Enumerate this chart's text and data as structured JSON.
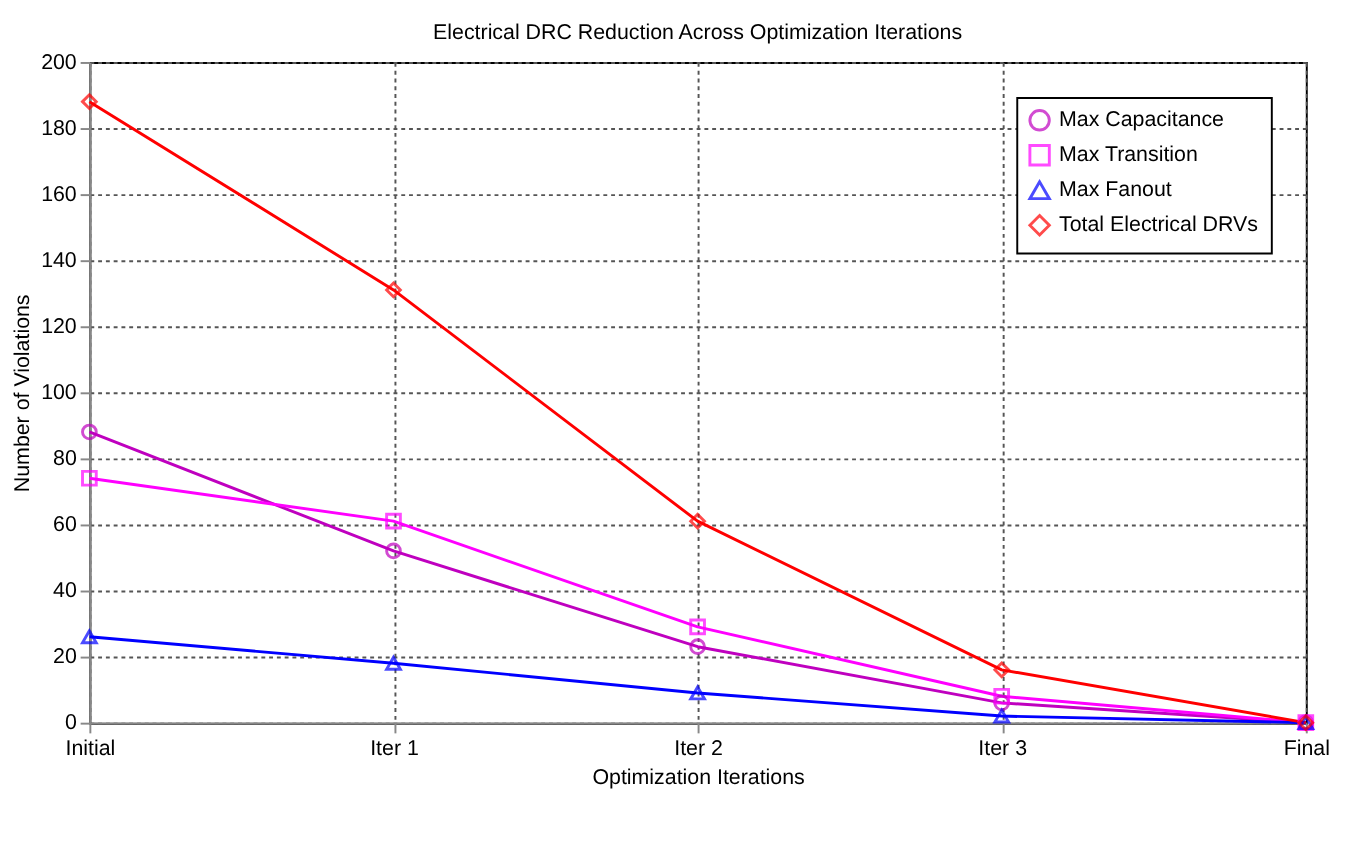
{
  "chart_data": {
    "type": "line",
    "title": "Electrical DRC Reduction Across Optimization Iterations",
    "xlabel": "Optimization Iterations",
    "ylabel": "Number of Violations",
    "categories": [
      "Initial",
      "Iter 1",
      "Iter 2",
      "Iter 3",
      "Final"
    ],
    "series": [
      {
        "name": "Max Capacitance",
        "color": "#bf00bf",
        "marker": "circle",
        "values": [
          88,
          52,
          23,
          6,
          0
        ]
      },
      {
        "name": "Max Transition",
        "color": "#ff00ff",
        "marker": "square",
        "values": [
          74,
          61,
          29,
          8,
          0
        ]
      },
      {
        "name": "Max Fanout",
        "color": "#0000ff",
        "marker": "triangle",
        "values": [
          26,
          18,
          9,
          2,
          0
        ]
      },
      {
        "name": "Total Electrical DRVs",
        "color": "#ff0000",
        "marker": "diamond",
        "values": [
          188,
          131,
          61,
          16,
          0
        ]
      }
    ],
    "ylim": [
      0,
      200
    ],
    "yticks": [
      0,
      20,
      40,
      60,
      80,
      100,
      120,
      140,
      160,
      180,
      200
    ],
    "grid": true,
    "legend": "top right",
    "line_style": "solid"
  }
}
